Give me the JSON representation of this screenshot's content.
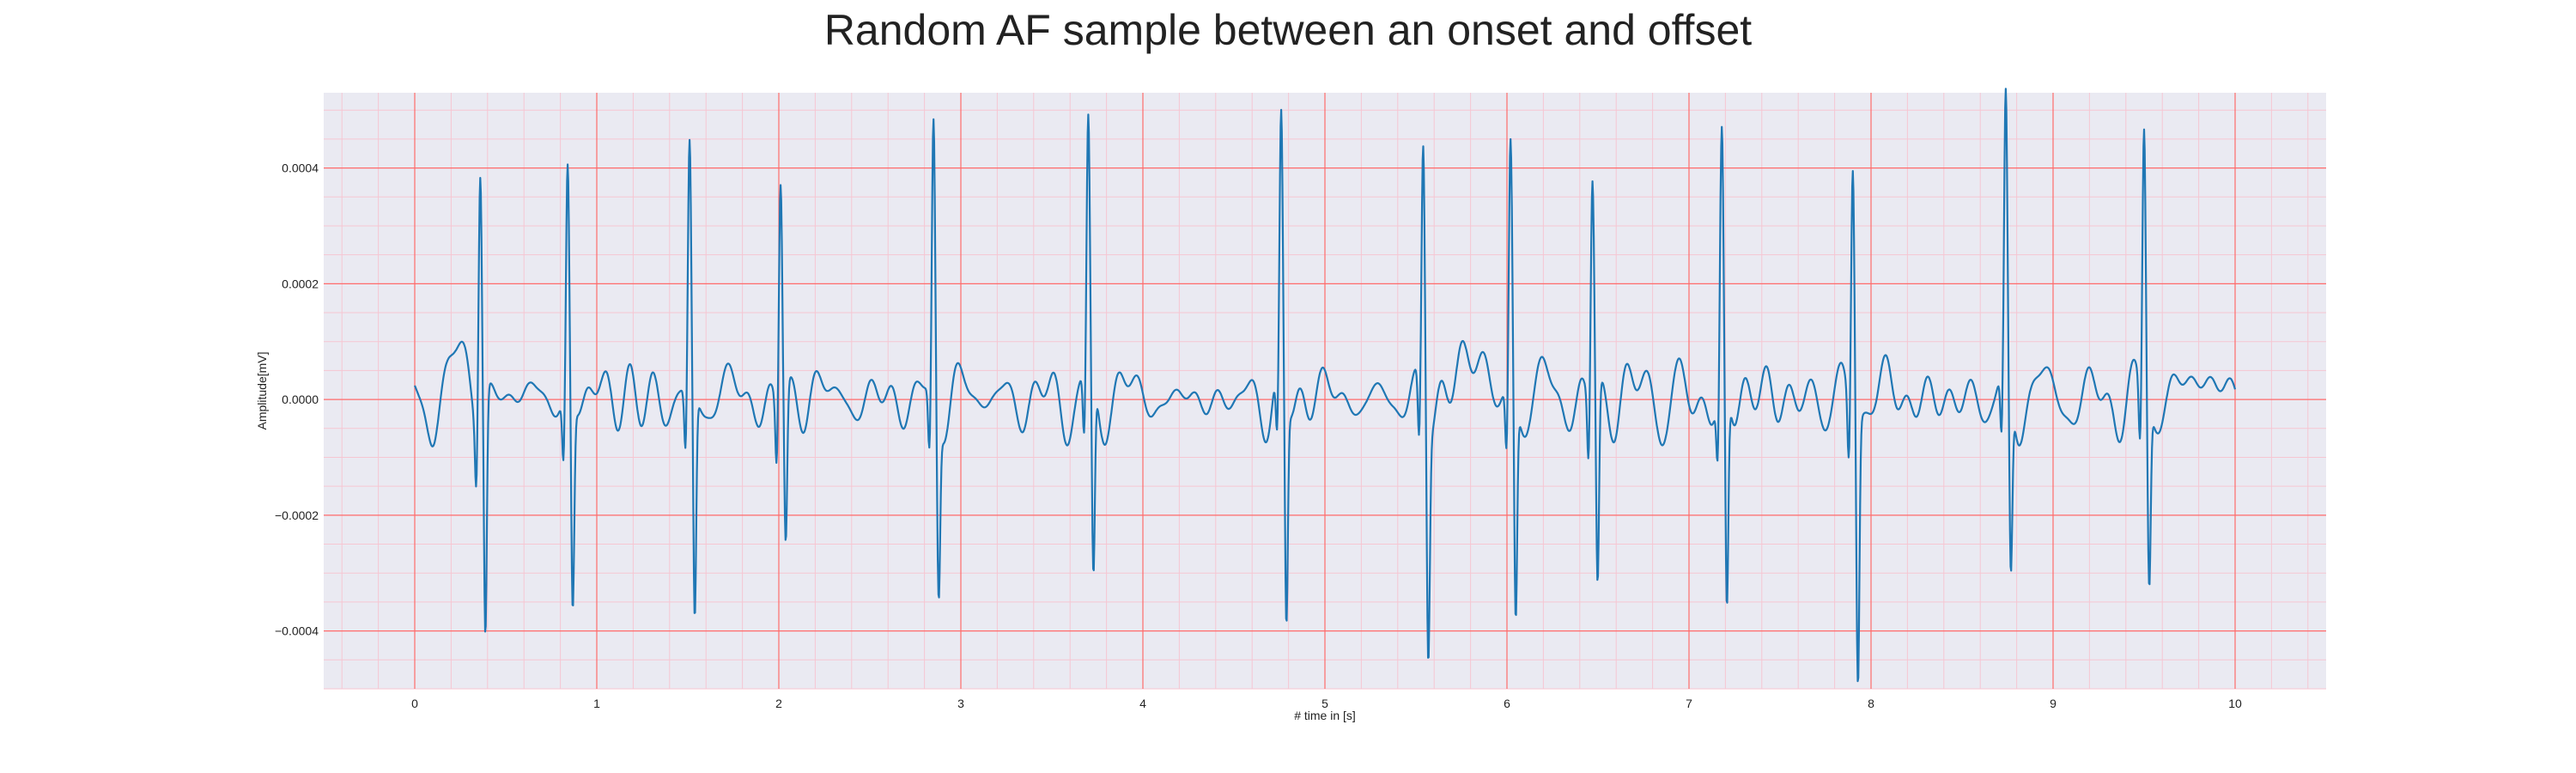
{
  "chart_data": {
    "type": "line",
    "title": "Random AF sample between an onset and offset",
    "xlabel": "# time in [s]",
    "ylabel": "Amplitude[mV]",
    "xlim": [
      -0.5,
      10.5
    ],
    "ylim": [
      -0.0005,
      0.00053
    ],
    "x_ticks": [
      0,
      1,
      2,
      3,
      4,
      5,
      6,
      7,
      8,
      9,
      10
    ],
    "x_tick_labels": [
      "0",
      "1",
      "2",
      "3",
      "4",
      "5",
      "6",
      "7",
      "8",
      "9",
      "10"
    ],
    "y_ticks": [
      -0.0004,
      -0.0002,
      0.0,
      0.0002,
      0.0004
    ],
    "y_tick_labels": [
      "−0.0004",
      "−0.0002",
      "0.0000",
      "0.0002",
      "0.0004"
    ],
    "grid": true,
    "minor_grid": true,
    "legend": "none",
    "colors": {
      "line": "#1f77b4",
      "plot_background": "#eaeaf2",
      "major_grid": "#ff6b6b",
      "minor_grid": "#f6c6d2"
    },
    "series": [
      {
        "sample_rate_hz": 300,
        "duration_s": 10,
        "beats": [
          {
            "t": 0.36,
            "r_peak": 0.00043,
            "s_trough": -0.000415
          },
          {
            "t": 0.84,
            "r_peak": 0.0004,
            "s_trough": -0.000355
          },
          {
            "t": 1.51,
            "r_peak": 0.00043,
            "s_trough": -0.00039
          },
          {
            "t": 2.01,
            "r_peak": 0.000393,
            "s_trough": -0.00026
          },
          {
            "t": 2.85,
            "r_peak": 0.000483,
            "s_trough": -0.000305
          },
          {
            "t": 3.7,
            "r_peak": 0.000443,
            "s_trough": -0.00034
          },
          {
            "t": 4.76,
            "r_peak": 0.000455,
            "s_trough": -0.000385
          },
          {
            "t": 5.54,
            "r_peak": 0.000453,
            "s_trough": -0.00039
          },
          {
            "t": 6.02,
            "r_peak": 0.000433,
            "s_trough": -0.000375
          },
          {
            "t": 6.47,
            "r_peak": 0.000388,
            "s_trough": -0.00034
          },
          {
            "t": 7.18,
            "r_peak": 0.000435,
            "s_trough": -0.000385
          },
          {
            "t": 7.9,
            "r_peak": 0.000435,
            "s_trough": -0.000455
          },
          {
            "t": 8.74,
            "r_peak": 0.000487,
            "s_trough": -0.00031
          },
          {
            "t": 9.5,
            "r_peak": 0.000465,
            "s_trough": -0.000308
          }
        ],
        "waves": [
          {
            "t": 0.23,
            "amp": 0.0001
          },
          {
            "t": 5.82,
            "amp": 0.0001
          },
          {
            "t": 9.86,
            "amp": 6e-05
          }
        ]
      }
    ]
  }
}
